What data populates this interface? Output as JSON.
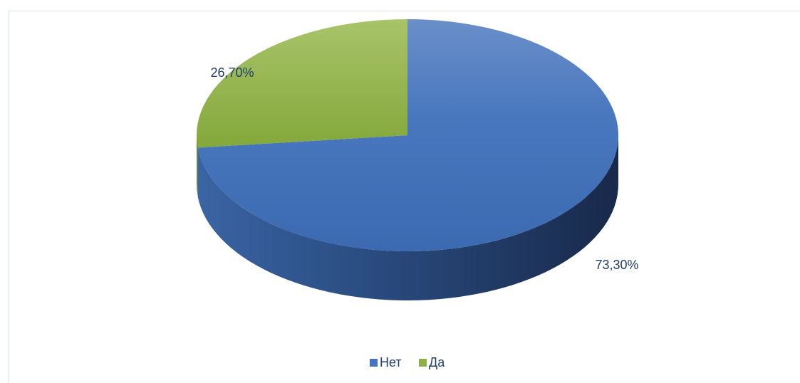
{
  "chart_data": {
    "type": "pie",
    "style": "3d",
    "categories": [
      "Нет",
      "Да"
    ],
    "values": [
      73.3,
      26.7
    ],
    "labels": [
      "73,30%",
      "26,70%"
    ],
    "colors": [
      "#4472c4",
      "#8db044"
    ],
    "legend": {
      "position": "bottom",
      "entries": [
        "Нет",
        "Да"
      ]
    }
  }
}
